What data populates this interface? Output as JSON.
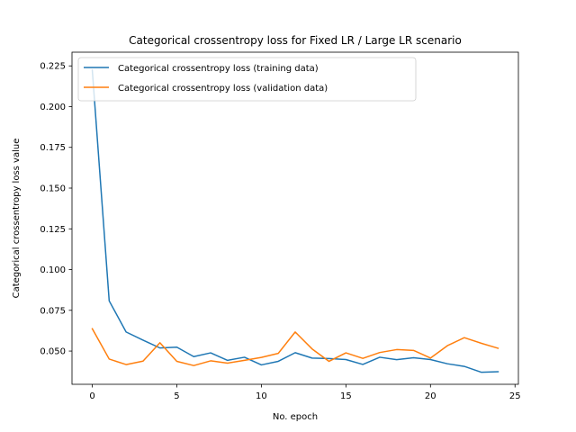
{
  "chart_data": {
    "type": "line",
    "title": "Categorical crossentropy loss for Fixed LR / Large LR scenario",
    "xlabel": "No. epoch",
    "ylabel": "Categorical crossentropy loss value",
    "xlim": [
      -1.2,
      25.2
    ],
    "ylim": [
      0.0296,
      0.2334
    ],
    "xticks": [
      0,
      5,
      10,
      15,
      20,
      25
    ],
    "xtick_labels": [
      "0",
      "5",
      "10",
      "15",
      "20",
      "25"
    ],
    "yticks": [
      0.05,
      0.075,
      0.1,
      0.125,
      0.15,
      0.175,
      0.2,
      0.225
    ],
    "ytick_labels": [
      "0.050",
      "0.075",
      "0.100",
      "0.125",
      "0.150",
      "0.175",
      "0.200",
      "0.225"
    ],
    "grid": false,
    "legend_position": "top-left",
    "x": [
      0,
      1,
      2,
      3,
      4,
      5,
      6,
      7,
      8,
      9,
      10,
      11,
      12,
      13,
      14,
      15,
      16,
      17,
      18,
      19,
      20,
      21,
      22,
      23,
      24
    ],
    "series": [
      {
        "name": "Categorical crossentropy loss (training data)",
        "color": "#1f77b4",
        "values": [
          0.2224,
          0.0808,
          0.0617,
          0.0567,
          0.0519,
          0.0524,
          0.0466,
          0.0489,
          0.0443,
          0.0462,
          0.0415,
          0.0437,
          0.049,
          0.0457,
          0.0454,
          0.0448,
          0.0418,
          0.0462,
          0.0447,
          0.0459,
          0.0448,
          0.0422,
          0.0406,
          0.037,
          0.0373
        ]
      },
      {
        "name": "Categorical crossentropy loss (validation data)",
        "color": "#ff7f0e",
        "values": [
          0.0637,
          0.0451,
          0.0417,
          0.0438,
          0.0551,
          0.0437,
          0.0411,
          0.044,
          0.0426,
          0.0443,
          0.0461,
          0.0486,
          0.0617,
          0.0513,
          0.0437,
          0.0489,
          0.0455,
          0.0491,
          0.0509,
          0.0504,
          0.0457,
          0.0533,
          0.0582,
          0.0548,
          0.0517
        ]
      }
    ]
  }
}
